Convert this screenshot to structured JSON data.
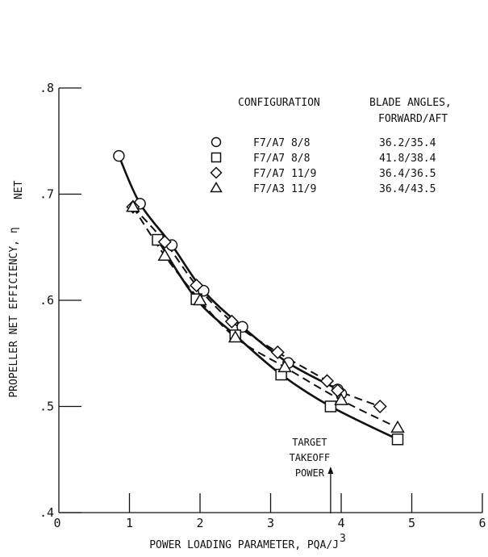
{
  "chart_data": {
    "type": "line",
    "title": "",
    "xlabel": "POWER LOADING PARAMETER, PQA/J",
    "xlabel_superscript": "3",
    "ylabel": "PROPELLER NET EFFICIENCY, η",
    "ylabel_subscript": "NET",
    "xlim": [
      0,
      6
    ],
    "ylim": [
      0.4,
      0.8
    ],
    "x_ticks": [
      0,
      1,
      2,
      3,
      4,
      5,
      6
    ],
    "x_tick_labels": [
      "0",
      "1",
      "2",
      "3",
      "4",
      "5",
      "6"
    ],
    "y_ticks": [
      0.4,
      0.5,
      0.6,
      0.7,
      0.8
    ],
    "y_tick_labels": [
      ".4",
      ".5",
      ".6",
      ".7",
      ".8"
    ],
    "grid": false,
    "legend": {
      "placement": "top-right",
      "header_config": "CONFIGURATION",
      "header_angles_1": "BLADE ANGLES,",
      "header_angles_2": "FORWARD/AFT"
    },
    "series": [
      {
        "name": "F7/A7 8/8",
        "angles": "36.2/35.4",
        "marker": "circle",
        "line": "solid",
        "x": [
          0.85,
          1.15,
          1.6,
          2.05,
          2.6,
          3.25,
          3.95,
          4.0
        ],
        "y": [
          0.736,
          0.691,
          0.652,
          0.609,
          0.575,
          0.541,
          0.516,
          0.512
        ]
      },
      {
        "name": "F7/A7 8/8",
        "angles": "41.8/38.4",
        "marker": "square",
        "line": "solid",
        "x": [
          1.4,
          1.95,
          2.5,
          3.15,
          3.85,
          4.8
        ],
        "y": [
          0.657,
          0.601,
          0.567,
          0.53,
          0.5,
          0.469
        ]
      },
      {
        "name": "F7/A7 11/9",
        "angles": "36.4/36.5",
        "marker": "diamond",
        "line": "dashed",
        "x": [
          1.05,
          1.5,
          1.95,
          2.45,
          3.1,
          3.8,
          3.95,
          4.55
        ],
        "y": [
          0.688,
          0.655,
          0.614,
          0.58,
          0.551,
          0.524,
          0.515,
          0.5
        ]
      },
      {
        "name": "F7/A3 11/9",
        "angles": "36.4/43.5",
        "marker": "triangle",
        "line": "dashed",
        "x": [
          1.05,
          1.5,
          2.0,
          2.5,
          3.2,
          4.0,
          4.8
        ],
        "y": [
          0.688,
          0.642,
          0.6,
          0.565,
          0.537,
          0.506,
          0.48
        ]
      }
    ],
    "annotations": [
      {
        "lines": [
          "TARGET",
          "TAKEOFF",
          "POWER"
        ],
        "x": 3.85,
        "arrow": "up"
      }
    ]
  }
}
